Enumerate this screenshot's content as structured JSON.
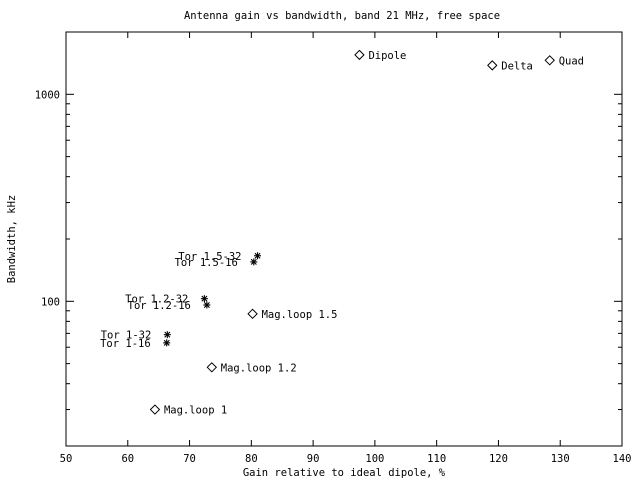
{
  "chart_data": {
    "type": "scatter",
    "title": "Antenna gain vs bandwidth, band 21 MHz, free space",
    "xlabel": "Gain relative to ideal dipole, %",
    "ylabel": "Bandwidth, kHz",
    "xlim": [
      50,
      140
    ],
    "ylim": [
      20,
      2000
    ],
    "ylog": true,
    "grid": false,
    "x_ticks": [
      50,
      60,
      70,
      80,
      90,
      100,
      110,
      120,
      130,
      140
    ],
    "y_tick_labels": [
      100,
      1000
    ],
    "y_minor_ticks": [
      20,
      30,
      40,
      50,
      60,
      70,
      80,
      90,
      200,
      300,
      400,
      500,
      600,
      700,
      800,
      900,
      2000
    ],
    "points": [
      {
        "label": "Dipole",
        "x": 97.5,
        "y": 1550,
        "marker": "diamond",
        "label_side": "right"
      },
      {
        "label": "Delta",
        "x": 119,
        "y": 1380,
        "marker": "diamond",
        "label_side": "right"
      },
      {
        "label": "Quad",
        "x": 128.3,
        "y": 1460,
        "marker": "diamond",
        "label_side": "right"
      },
      {
        "label": "Mag.loop 1.5",
        "x": 80.2,
        "y": 87,
        "marker": "diamond",
        "label_side": "right"
      },
      {
        "label": "Mag.loop 1.2",
        "x": 73.6,
        "y": 48,
        "marker": "diamond",
        "label_side": "right"
      },
      {
        "label": "Mag.loop 1",
        "x": 64.4,
        "y": 30,
        "marker": "diamond",
        "label_side": "right"
      },
      {
        "label": "Tor 1.5-32",
        "x": 81,
        "y": 166,
        "marker": "star",
        "label_side": "left"
      },
      {
        "label": "Tor 1.5-16",
        "x": 80.4,
        "y": 155,
        "marker": "star",
        "label_side": "left"
      },
      {
        "label": "Tor 1.2-32",
        "x": 72.4,
        "y": 103,
        "marker": "star",
        "label_side": "left"
      },
      {
        "label": "Tor 1.2-16",
        "x": 72.8,
        "y": 96,
        "marker": "star",
        "label_side": "left"
      },
      {
        "label": "Tor 1-32",
        "x": 66.4,
        "y": 69,
        "marker": "star",
        "label_side": "left"
      },
      {
        "label": "Tor 1-16",
        "x": 66.3,
        "y": 63,
        "marker": "star",
        "label_side": "left"
      }
    ]
  }
}
